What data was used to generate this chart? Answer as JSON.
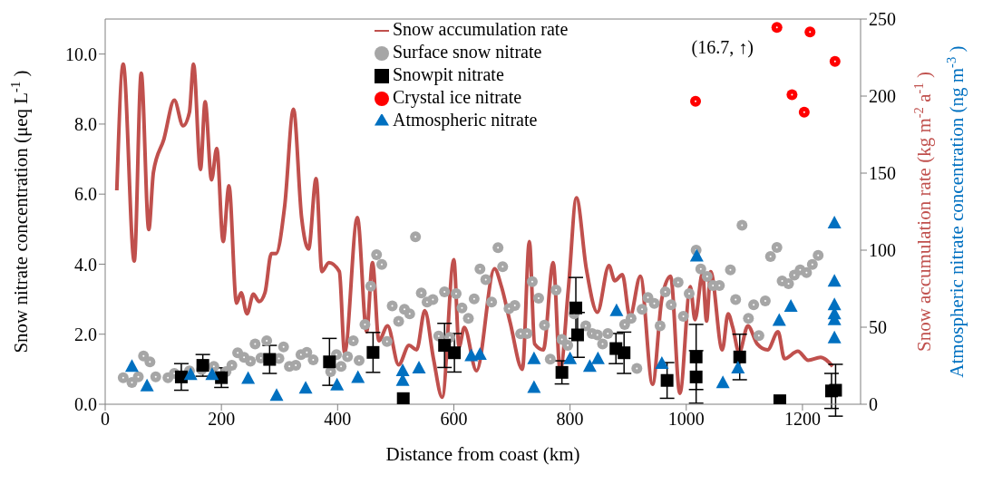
{
  "chart_data": {
    "type": "scatter",
    "xlabel": "Distance from coast (km)",
    "ylabel": "Snow nitrate concentration (μeq L$^{-1}$)",
    "y2label": "Snow accumulation rate (kg m$^{-2}$ a$^{-1}$)",
    "y3label": "Atmospheric nitrate concentration (ng m$^{-3}$)",
    "xlim": [
      0,
      1300
    ],
    "xticks": [
      0,
      200,
      400,
      600,
      800,
      1000,
      1200
    ],
    "ylim": [
      0,
      11
    ],
    "yticks": [
      {
        "value": 0,
        "label": "0.0"
      },
      {
        "value": 2,
        "label": "2.0"
      },
      {
        "value": 4,
        "label": "4.0"
      },
      {
        "value": 6,
        "label": "6.0"
      },
      {
        "value": 8,
        "label": "8.0"
      },
      {
        "value": 10,
        "label": "10.0"
      }
    ],
    "y2lim": [
      0,
      250
    ],
    "y2ticks": [
      0,
      50,
      100,
      150,
      200,
      250
    ],
    "legend": "top",
    "grid": false,
    "annotations": [
      {
        "text": "(16.7, ↑)",
        "x": 1156,
        "y": 10.76
      }
    ],
    "series": [
      {
        "name": "Snow accumulation rate",
        "type": "line",
        "color": "#c0504d",
        "axis": "y2",
        "marker": "none",
        "line_style": "solid",
        "x": [
          20,
          31,
          50,
          62,
          75,
          83,
          101,
          119,
          134,
          145,
          152,
          164,
          172,
          183,
          192,
          203,
          213,
          226,
          234,
          244,
          255,
          265,
          275,
          286,
          294,
          309,
          324,
          338,
          350,
          363,
          373,
          385,
          403,
          412,
          434,
          450,
          460,
          471,
          486,
          505,
          523,
          536,
          550,
          565,
          580,
          600,
          609,
          618,
          639,
          670,
          682,
          697,
          718,
          730,
          739,
          754,
          771,
          783,
          797,
          811,
          828,
          847,
          867,
          877,
          890,
          903,
          921,
          942,
          958,
          973,
          989,
          1007,
          1015,
          1028,
          1035,
          1042,
          1062,
          1072,
          1080,
          1091,
          1106,
          1122,
          1140,
          1158,
          1169,
          1192,
          1210,
          1231,
          1252
        ],
        "values": [
          138.8,
          220.7,
          92.9,
          214.9,
          113.4,
          150.5,
          172,
          197.3,
          180.7,
          189.5,
          220.7,
          152.4,
          196.3,
          145.6,
          166.1,
          105.6,
          141.7,
          65.6,
          72.4,
          58.7,
          71.4,
          66.6,
          72.4,
          97.8,
          97.8,
          129,
          191.4,
          121.2,
          100.7,
          146.5,
          86.1,
          91.9,
          86.1,
          33.4,
          121.2,
          47,
          91.9,
          41.2,
          50.9,
          25.6,
          38.2,
          35.3,
          60.7,
          29.5,
          4.5,
          93.8,
          37.3,
          49.9,
          21.7,
          88,
          76.3,
          52.9,
          22.7,
          105.6,
          39.2,
          35.3,
          91.9,
          21.7,
          74.4,
          133.9,
          88,
          59.7,
          90,
          80.2,
          84.1,
          56.8,
          83.1,
          12.9,
          68.5,
          83.1,
          7,
          76.3,
          54.9,
          85.1,
          53.9,
          86.1,
          35.3,
          58.7,
          49.9,
          33.4,
          50.9,
          39.2,
          35.3,
          47,
          29.5,
          34.4,
          28.5,
          30.4,
          24.6
        ]
      },
      {
        "name": "Surface snow nitrate",
        "color": "#a6a6a6",
        "axis": "y",
        "marker": "circle",
        "x": [
          31,
          46,
          57,
          66,
          77,
          87,
          108,
          119,
          145,
          166,
          187,
          208,
          218,
          228,
          239,
          250,
          258,
          268,
          278,
          299,
          307,
          317,
          328,
          337,
          347,
          358,
          388,
          398,
          406,
          417,
          427,
          437,
          447,
          457,
          467,
          476,
          485,
          494,
          505,
          515,
          524,
          534,
          544,
          554,
          564,
          574,
          584,
          593,
          604,
          614,
          625,
          635,
          645,
          655,
          665,
          676,
          684,
          695,
          705,
          715,
          726,
          735,
          746,
          756,
          766,
          776,
          786,
          796,
          807,
          827,
          838,
          847,
          856,
          865,
          894,
          905,
          915,
          924,
          934,
          945,
          955,
          964,
          974,
          986,
          995,
          1005,
          1017,
          1025,
          1036,
          1046,
          1057,
          1076,
          1085,
          1096,
          1107,
          1116,
          1125,
          1136,
          1145,
          1156,
          1165,
          1176,
          1186,
          1196,
          1207,
          1217,
          1227
        ],
        "values": [
          0.76,
          0.62,
          0.78,
          1.38,
          1.21,
          0.78,
          0.76,
          0.88,
          0.95,
          0.99,
          1.08,
          0.93,
          1.11,
          1.47,
          1.34,
          1.23,
          1.72,
          1.32,
          1.81,
          1.31,
          1.64,
          1.08,
          1.11,
          1.42,
          1.48,
          1.27,
          0.93,
          1.42,
          1.08,
          1.36,
          1.81,
          1.25,
          2.28,
          3.37,
          4.27,
          3.99,
          1.79,
          2.81,
          2.37,
          2.71,
          2.58,
          4.78,
          3.18,
          2.92,
          2.99,
          1.95,
          3.21,
          1.91,
          3.16,
          2.75,
          2.45,
          3.01,
          3.86,
          3.56,
          2.92,
          4.47,
          3.93,
          2.73,
          2.82,
          2.01,
          2.02,
          3.5,
          3.03,
          2.26,
          1.29,
          3.26,
          1.85,
          1.68,
          2.58,
          2.24,
          2.02,
          1.98,
          1.72,
          2.02,
          2.28,
          2.45,
          1.02,
          2.71,
          3.05,
          2.88,
          2.24,
          3.21,
          2.84,
          3.48,
          2.51,
          3.16,
          4.4,
          3.86,
          3.65,
          3.39,
          3.39,
          3.84,
          2.99,
          5.11,
          2.45,
          2.84,
          1.96,
          2.95,
          4.22,
          4.48,
          3.52,
          3.44,
          3.69,
          3.84,
          3.76,
          3.99,
          4.25
        ]
      },
      {
        "name": "Snowpit nitrate",
        "color": "#000000",
        "axis": "y",
        "marker": "square",
        "x": [
          131,
          168,
          200,
          283,
          386,
          461,
          513,
          584,
          601,
          786,
          810,
          813,
          879,
          893,
          967,
          1017,
          1017,
          1092,
          1161,
          1250,
          1257
        ],
        "values": [
          0.78,
          1.11,
          0.76,
          1.28,
          1.21,
          1.48,
          0.16,
          1.68,
          1.47,
          0.91,
          2.75,
          1.98,
          1.59,
          1.47,
          0.68,
          1.35,
          0.78,
          1.35,
          0.1,
          0.38,
          0.4
        ],
        "errors": [
          0.38,
          0.31,
          0.28,
          0.4,
          0.67,
          0.57,
          null,
          0.63,
          0.55,
          0.33,
          0.87,
          0.64,
          0.43,
          0.59,
          0.51,
          0.93,
          0.75,
          0.65,
          null,
          0.5,
          0.74
        ]
      },
      {
        "name": "Crystal ice nitrate",
        "color": "#ff0000",
        "axis": "y",
        "marker": "circle",
        "x": [
          1016,
          1156,
          1213,
          1256,
          1182,
          1203
        ],
        "values": [
          8.65,
          10.76,
          10.63,
          9.79,
          8.84,
          8.34
        ]
      },
      {
        "name": "Atmospheric nitrate",
        "color": "#0070c0",
        "axis": "y2",
        "marker": "triangle",
        "x": [
          46,
          72,
          147,
          184,
          246,
          295,
          345,
          399,
          435,
          512,
          512,
          540,
          630,
          645,
          738,
          738,
          800,
          834,
          848,
          880,
          958,
          1018,
          1063,
          1089,
          1160,
          1180,
          1255,
          1255,
          1255,
          1255,
          1255,
          1255
        ],
        "values": [
          24.6,
          11.9,
          19.3,
          19.3,
          16.8,
          5.7,
          10.5,
          12.5,
          17.4,
          21.7,
          15.4,
          23.6,
          31.4,
          32.4,
          29.5,
          10.9,
          29.5,
          24.6,
          29.5,
          60.7,
          26.5,
          96.2,
          13.9,
          23.6,
          54.4,
          63.6,
          117.7,
          79.8,
          64.6,
          58.7,
          54.8,
          43.1
        ]
      }
    ]
  }
}
